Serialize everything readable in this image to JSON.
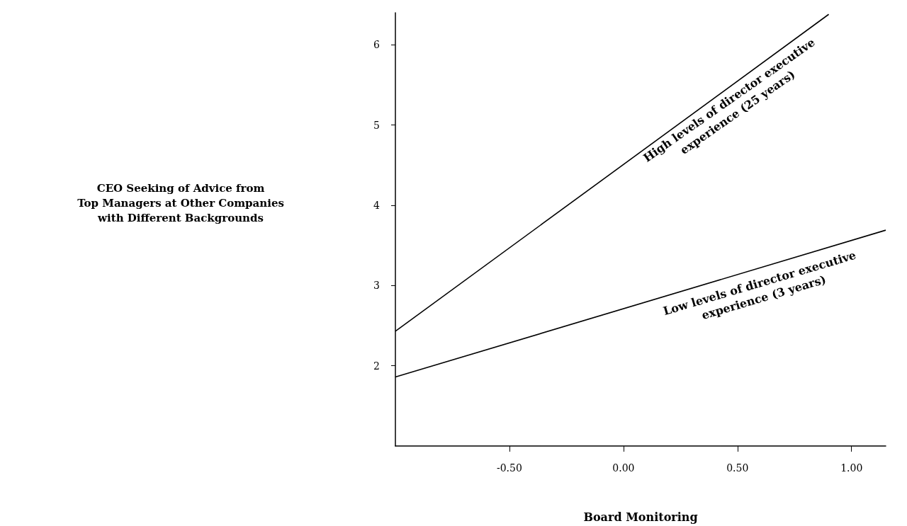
{
  "chart_data": {
    "type": "line",
    "xlabel": "Board Monitoring",
    "series": [
      {
        "color": "#000000",
        "x": [
          -1.0,
          0.9
        ],
        "values": [
          2.43,
          6.38
        ]
      },
      {
        "color": "#000000",
        "x": [
          -1.0,
          1.15
        ],
        "values": [
          1.86,
          3.69
        ]
      }
    ],
    "xlim": [
      -1.0,
      1.15
    ],
    "ylim": [
      1,
      6.4
    ],
    "xticks": [
      {
        "value": -0.5,
        "label": "-0.50"
      },
      {
        "value": 0,
        "label": "0.00"
      },
      {
        "value": 0.5,
        "label": "0.50"
      },
      {
        "value": 1,
        "label": "1.00"
      }
    ],
    "yticks": [
      2,
      3,
      4,
      5,
      6
    ],
    "marker": "none",
    "line_style": "solid",
    "annotations": [
      "CEO Seeking of Advice from\nTop Managers at Other Companies\nwith Different Backgrounds",
      "High levels of director executive\nexperience (25 years)",
      "Low levels of director executive\nexperience (3 years)"
    ]
  }
}
